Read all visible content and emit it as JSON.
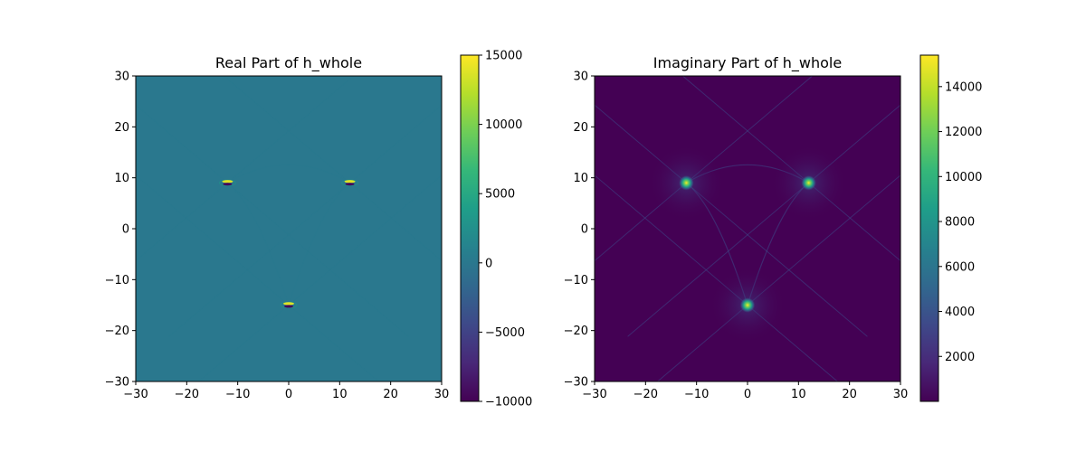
{
  "chart_data": [
    {
      "type": "heatmap",
      "title": "Real Part of h_whole",
      "xlabel": "",
      "ylabel": "",
      "xlim": [
        -30,
        30
      ],
      "ylim": [
        -30,
        30
      ],
      "x_ticks": [
        -30,
        -20,
        -10,
        0,
        10,
        20,
        30
      ],
      "y_ticks": [
        -30,
        -20,
        -10,
        0,
        10,
        20,
        30
      ],
      "x_tick_labels": [
        "−30",
        "−20",
        "−10",
        "0",
        "10",
        "20",
        "30"
      ],
      "y_tick_labels": [
        "−30",
        "−20",
        "−10",
        "0",
        "10",
        "20",
        "30"
      ],
      "colormap": "viridis",
      "background_value": 0,
      "sources": [
        [
          -12,
          9
        ],
        [
          12,
          9
        ],
        [
          0,
          -15
        ]
      ],
      "colorbar": {
        "range": [
          -10000,
          15000
        ],
        "ticks": [
          -10000,
          -5000,
          0,
          5000,
          10000,
          15000
        ],
        "tick_labels": [
          "−10000",
          "−5000",
          "0",
          "5000",
          "10000",
          "15000"
        ]
      }
    },
    {
      "type": "heatmap",
      "title": "Imaginary Part of h_whole",
      "xlabel": "",
      "ylabel": "",
      "xlim": [
        -30,
        30
      ],
      "ylim": [
        -30,
        30
      ],
      "x_ticks": [
        -30,
        -20,
        -10,
        0,
        10,
        20,
        30
      ],
      "y_ticks": [
        -30,
        -20,
        -10,
        0,
        10,
        20,
        30
      ],
      "x_tick_labels": [
        "−30",
        "−20",
        "−10",
        "0",
        "10",
        "20",
        "30"
      ],
      "y_tick_labels": [
        "−30",
        "−20",
        "−10",
        "0",
        "10",
        "20",
        "30"
      ],
      "colormap": "viridis",
      "background_value": 0,
      "sources": [
        [
          -12,
          9
        ],
        [
          12,
          9
        ],
        [
          0,
          -15
        ]
      ],
      "colorbar": {
        "range": [
          0,
          15400
        ],
        "ticks": [
          2000,
          4000,
          6000,
          8000,
          10000,
          12000,
          14000
        ],
        "tick_labels": [
          "2000",
          "4000",
          "6000",
          "8000",
          "10000",
          "12000",
          "14000"
        ]
      }
    }
  ],
  "colors": {
    "viridis": [
      "#440154",
      "#482878",
      "#3e4989",
      "#31688e",
      "#26828e",
      "#1f9e89",
      "#35b779",
      "#6ece58",
      "#b5de2b",
      "#fde725"
    ]
  }
}
